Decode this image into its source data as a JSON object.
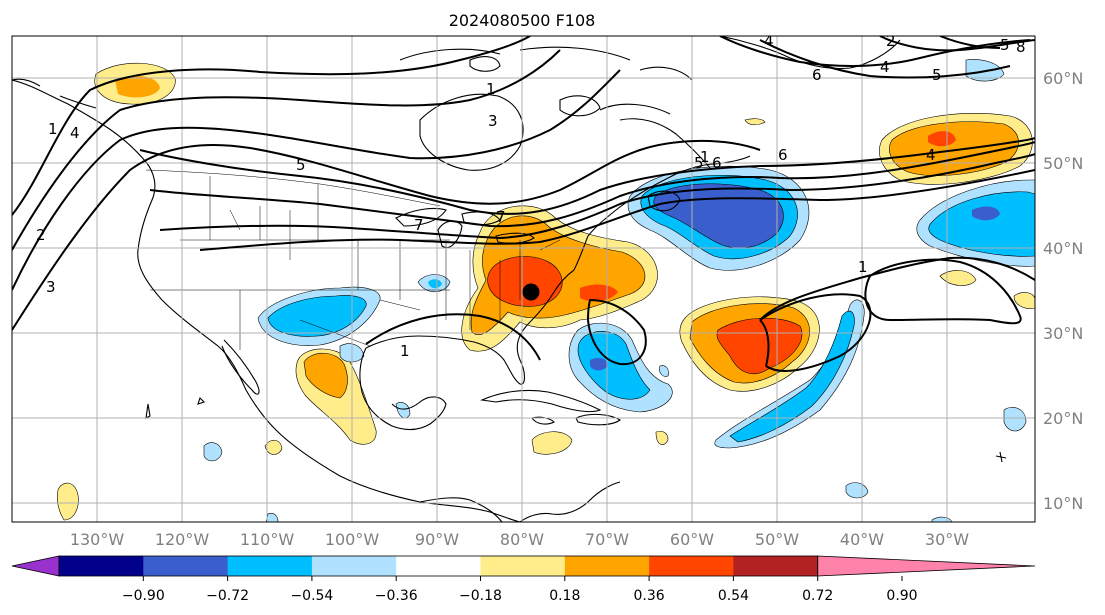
{
  "title": "2024080500 F108",
  "lon_labels": [
    "130°W",
    "120°W",
    "110°W",
    "100°W",
    "90°W",
    "80°W",
    "70°W",
    "60°W",
    "50°W",
    "40°W",
    "30°W"
  ],
  "lat_labels": [
    "60°N",
    "50°N",
    "40°N",
    "30°N",
    "20°N",
    "10°N"
  ],
  "colorbar": {
    "ticks": [
      "−0.90",
      "−0.72",
      "−0.54",
      "−0.36",
      "−0.18",
      "0.18",
      "0.36",
      "0.54",
      "0.72",
      "0.90"
    ],
    "colors": [
      "#9932cc",
      "#00008b",
      "#3a5fcd",
      "#00bfff",
      "#b0e2ff",
      "#ffffff",
      "#ffec8b",
      "#ffa500",
      "#ff4500",
      "#b22222",
      "#ff82ab"
    ]
  },
  "contour_labels": [
    "1",
    "2",
    "3",
    "4",
    "5",
    "6",
    "7",
    "8",
    "1",
    "3",
    "4",
    "5",
    "6",
    "2",
    "4",
    "5",
    "6",
    "4",
    "5",
    "7",
    "1",
    "1",
    "1"
  ],
  "marker": "black-dot"
}
